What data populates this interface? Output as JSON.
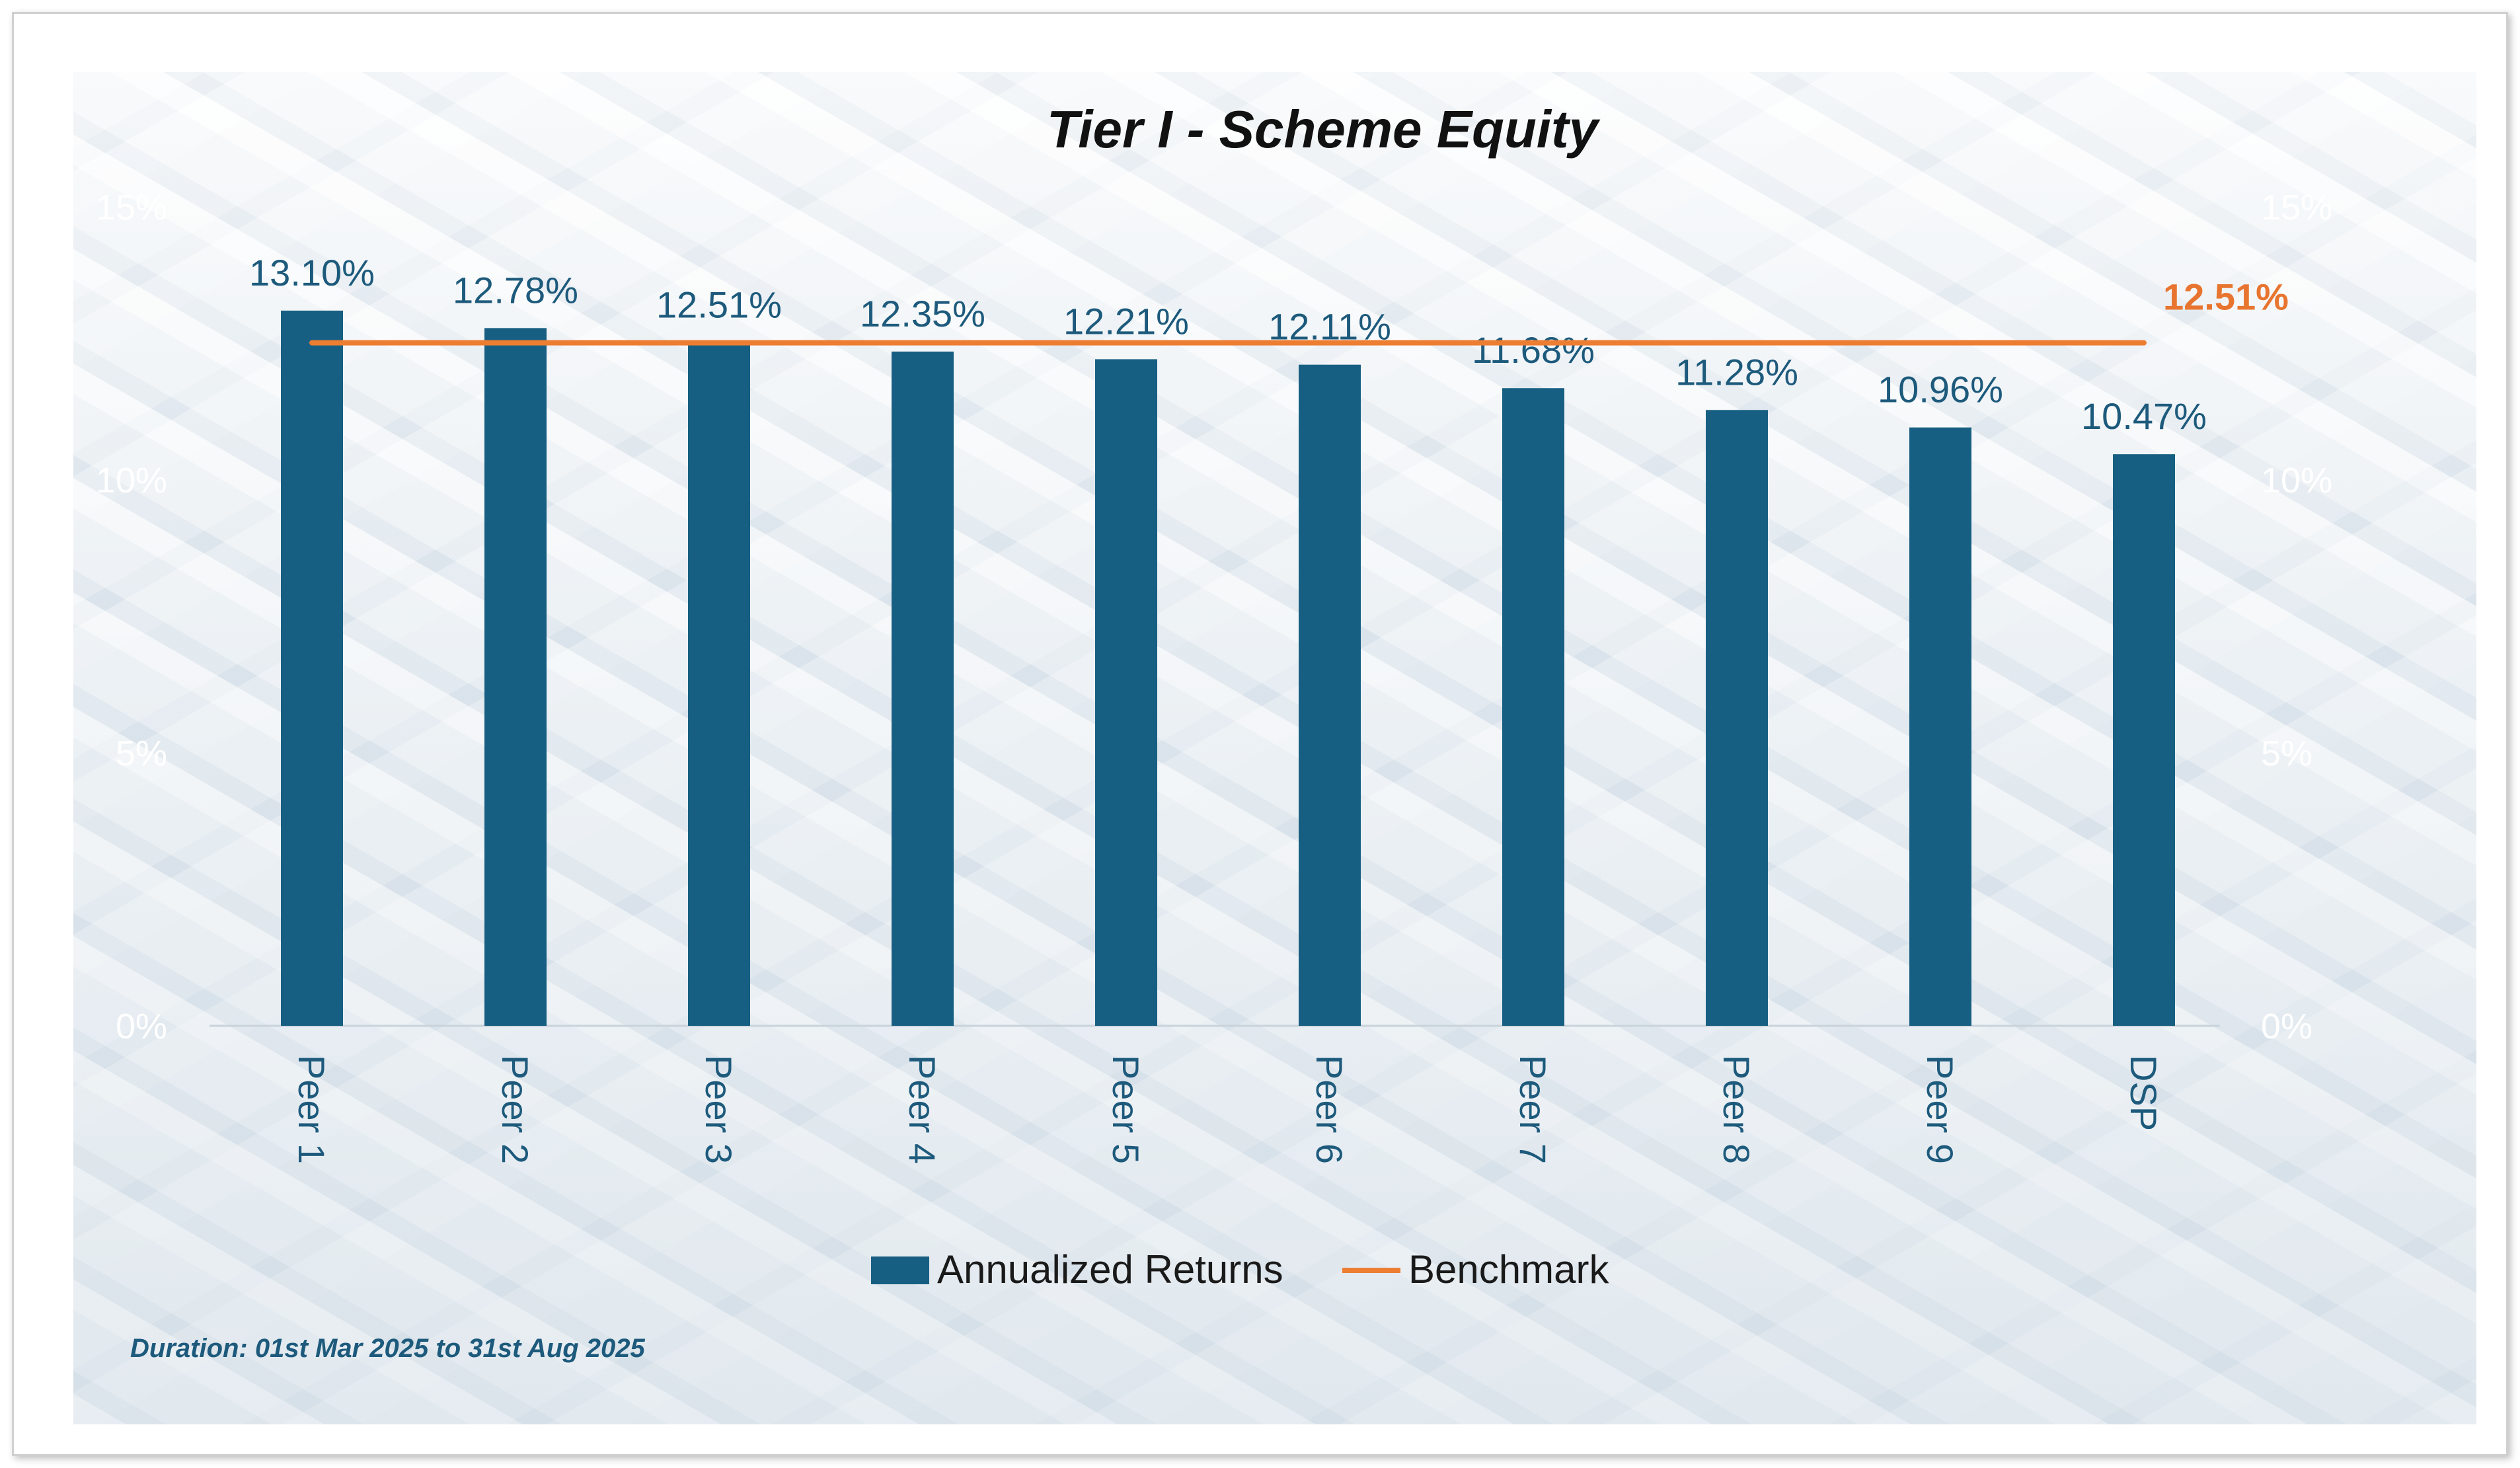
{
  "colors": {
    "bar": "#175f82",
    "benchmark_line": "#ed7d31",
    "label": "#1d5a7c",
    "tick": "#ffffff"
  },
  "footnote": "Duration: 01st Mar 2025 to 31st Aug 2025",
  "chart_data": {
    "type": "bar",
    "title": "Tier I - Scheme Equity",
    "categories": [
      "Peer 1",
      "Peer 2",
      "Peer 3",
      "Peer 4",
      "Peer 5",
      "Peer 6",
      "Peer 7",
      "Peer 8",
      "Peer 9",
      "DSP"
    ],
    "series": [
      {
        "name": "Annualized Returns",
        "type": "bar",
        "values": [
          13.1,
          12.78,
          12.51,
          12.35,
          12.21,
          12.11,
          11.68,
          11.28,
          10.96,
          10.47
        ],
        "labels": [
          "13.10%",
          "12.78%",
          "12.51%",
          "12.35%",
          "12.21%",
          "12.11%",
          "11.68%",
          "11.28%",
          "10.96%",
          "10.47%"
        ]
      },
      {
        "name": "Benchmark",
        "type": "line",
        "value": 12.51,
        "label": "12.51%"
      }
    ],
    "yticks": [
      "0%",
      "5%",
      "10%",
      "15%"
    ],
    "ytick_values": [
      0,
      5,
      10,
      15
    ],
    "ylim": [
      0,
      15
    ],
    "secondary_yaxis": true,
    "grid": false,
    "legend_position": "bottom"
  }
}
